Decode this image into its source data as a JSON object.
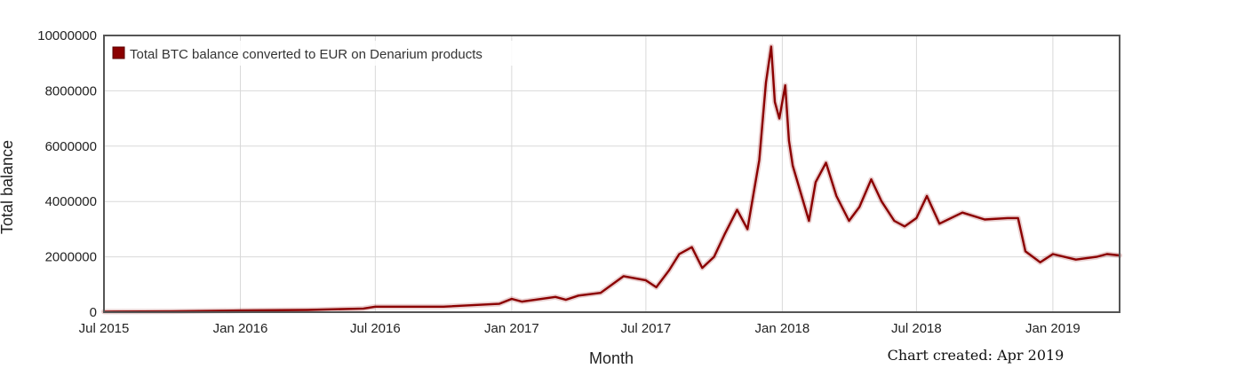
{
  "chart_data": {
    "type": "line",
    "xlabel": "Month",
    "ylabel": "Total balance",
    "credit": "Chart created: Apr 2019",
    "xlim": [
      "2015-07-01",
      "2019-04-01"
    ],
    "ylim": [
      0,
      10000000
    ],
    "grid": true,
    "legend_position": "top-left",
    "x_ticks": [
      {
        "date": "2015-07-01",
        "label": "Jul 2015"
      },
      {
        "date": "2016-01-01",
        "label": "Jan 2016"
      },
      {
        "date": "2016-07-01",
        "label": "Jul 2016"
      },
      {
        "date": "2017-01-01",
        "label": "Jan 2017"
      },
      {
        "date": "2017-07-01",
        "label": "Jul 2017"
      },
      {
        "date": "2018-01-01",
        "label": "Jan 2018"
      },
      {
        "date": "2018-07-01",
        "label": "Jul 2018"
      },
      {
        "date": "2019-01-01",
        "label": "Jan 2019"
      }
    ],
    "y_ticks": [
      {
        "value": 0,
        "label": "0"
      },
      {
        "value": 2000000,
        "label": "2000000"
      },
      {
        "value": 4000000,
        "label": "4000000"
      },
      {
        "value": 6000000,
        "label": "6000000"
      },
      {
        "value": 8000000,
        "label": "8000000"
      },
      {
        "value": 10000000,
        "label": "10000000"
      }
    ],
    "series": [
      {
        "name": "Total BTC balance converted to EUR on Denarium products",
        "color": "#8b0000",
        "points": [
          [
            "2015-07-01",
            20000
          ],
          [
            "2015-10-01",
            30000
          ],
          [
            "2016-01-01",
            60000
          ],
          [
            "2016-04-01",
            80000
          ],
          [
            "2016-06-15",
            130000
          ],
          [
            "2016-07-01",
            200000
          ],
          [
            "2016-10-01",
            200000
          ],
          [
            "2016-12-15",
            300000
          ],
          [
            "2017-01-01",
            480000
          ],
          [
            "2017-01-15",
            380000
          ],
          [
            "2017-03-01",
            550000
          ],
          [
            "2017-03-15",
            450000
          ],
          [
            "2017-04-01",
            600000
          ],
          [
            "2017-05-01",
            700000
          ],
          [
            "2017-06-01",
            1300000
          ],
          [
            "2017-07-01",
            1150000
          ],
          [
            "2017-07-15",
            900000
          ],
          [
            "2017-08-01",
            1500000
          ],
          [
            "2017-08-15",
            2100000
          ],
          [
            "2017-09-01",
            2350000
          ],
          [
            "2017-09-15",
            1600000
          ],
          [
            "2017-10-01",
            2000000
          ],
          [
            "2017-10-15",
            2800000
          ],
          [
            "2017-11-01",
            3700000
          ],
          [
            "2017-11-15",
            3000000
          ],
          [
            "2017-12-01",
            5500000
          ],
          [
            "2017-12-10",
            8300000
          ],
          [
            "2017-12-17",
            9600000
          ],
          [
            "2017-12-22",
            7600000
          ],
          [
            "2017-12-28",
            7000000
          ],
          [
            "2018-01-05",
            8200000
          ],
          [
            "2018-01-10",
            6200000
          ],
          [
            "2018-01-15",
            5300000
          ],
          [
            "2018-02-06",
            3300000
          ],
          [
            "2018-02-15",
            4700000
          ],
          [
            "2018-03-01",
            5400000
          ],
          [
            "2018-03-15",
            4200000
          ],
          [
            "2018-04-01",
            3300000
          ],
          [
            "2018-04-15",
            3800000
          ],
          [
            "2018-05-01",
            4800000
          ],
          [
            "2018-05-15",
            4000000
          ],
          [
            "2018-06-01",
            3300000
          ],
          [
            "2018-06-15",
            3100000
          ],
          [
            "2018-07-01",
            3400000
          ],
          [
            "2018-07-15",
            4200000
          ],
          [
            "2018-08-01",
            3200000
          ],
          [
            "2018-09-01",
            3600000
          ],
          [
            "2018-10-01",
            3350000
          ],
          [
            "2018-11-01",
            3400000
          ],
          [
            "2018-11-15",
            3400000
          ],
          [
            "2018-11-25",
            2200000
          ],
          [
            "2018-12-15",
            1800000
          ],
          [
            "2019-01-01",
            2100000
          ],
          [
            "2019-02-01",
            1900000
          ],
          [
            "2019-03-01",
            2000000
          ],
          [
            "2019-03-15",
            2100000
          ],
          [
            "2019-04-01",
            2050000
          ]
        ]
      }
    ]
  }
}
